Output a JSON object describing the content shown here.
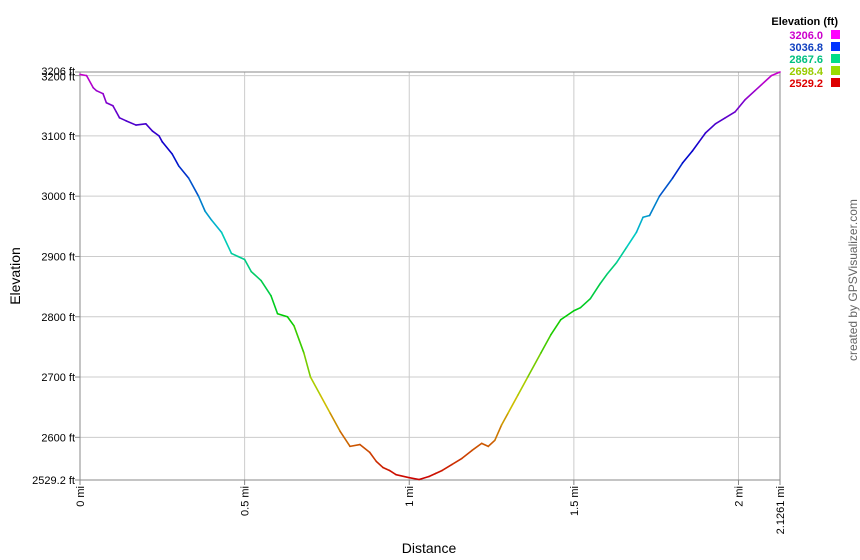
{
  "chart_data": {
    "type": "line",
    "xlabel": "Distance",
    "ylabel": "Elevation",
    "xlim": [
      0,
      2.1261
    ],
    "ylim": [
      2529.2,
      3206
    ],
    "x_ticks": [
      {
        "v": 0,
        "label": "0 mi"
      },
      {
        "v": 0.5,
        "label": "0.5 mi"
      },
      {
        "v": 1,
        "label": "1 mi"
      },
      {
        "v": 1.5,
        "label": "1.5 mi"
      },
      {
        "v": 2,
        "label": "2 mi"
      },
      {
        "v": 2.1261,
        "label": "2.1261 mi"
      }
    ],
    "y_ticks": [
      {
        "v": 2529.2,
        "label": "2529.2 ft"
      },
      {
        "v": 2600,
        "label": "2600 ft"
      },
      {
        "v": 2700,
        "label": "2700 ft"
      },
      {
        "v": 2800,
        "label": "2800 ft"
      },
      {
        "v": 2900,
        "label": "2900 ft"
      },
      {
        "v": 3000,
        "label": "3000 ft"
      },
      {
        "v": 3100,
        "label": "3100 ft"
      },
      {
        "v": 3200,
        "label": "3200 ft"
      },
      {
        "v": 3206,
        "label": "3206 ft"
      }
    ],
    "legend": {
      "title": "Elevation (ft)",
      "placement": "top-right",
      "entries": [
        {
          "label": "3206.0",
          "color": "#cc00cc",
          "swatch": "#ff00ff"
        },
        {
          "label": "3036.8",
          "color": "#1040c0",
          "swatch": "#0033ff"
        },
        {
          "label": "2867.6",
          "color": "#00c080",
          "swatch": "#00dd88"
        },
        {
          "label": "2698.4",
          "color": "#99cc00",
          "swatch": "#99dd00"
        },
        {
          "label": "2529.2",
          "color": "#dd0000",
          "swatch": "#dd0000"
        }
      ]
    },
    "grid": true,
    "series": [
      {
        "x": [
          0,
          0.02,
          0.04,
          0.05,
          0.07,
          0.08,
          0.1,
          0.11,
          0.12,
          0.14,
          0.17,
          0.2,
          0.22,
          0.24,
          0.25,
          0.28,
          0.3,
          0.33,
          0.36,
          0.38,
          0.4,
          0.43,
          0.46,
          0.48,
          0.5,
          0.52,
          0.55,
          0.58,
          0.6,
          0.63,
          0.65,
          0.68,
          0.7,
          0.73,
          0.76,
          0.79,
          0.82,
          0.85,
          0.88,
          0.9,
          0.92,
          0.94,
          0.96,
          1.0,
          1.03,
          1.06,
          1.08,
          1.1,
          1.13,
          1.16,
          1.19,
          1.22,
          1.24,
          1.26,
          1.28,
          1.3,
          1.33,
          1.36,
          1.4,
          1.43,
          1.46,
          1.5,
          1.52,
          1.55,
          1.58,
          1.6,
          1.63,
          1.66,
          1.69,
          1.71,
          1.73,
          1.76,
          1.8,
          1.83,
          1.86,
          1.88,
          1.9,
          1.93,
          1.96,
          1.99,
          2.02,
          2.05,
          2.07,
          2.1,
          2.1261
        ],
        "y": [
          3202,
          3200,
          3180,
          3175,
          3170,
          3155,
          3150,
          3140,
          3130,
          3125,
          3118,
          3120,
          3108,
          3100,
          3090,
          3070,
          3050,
          3030,
          3000,
          2975,
          2960,
          2940,
          2905,
          2900,
          2895,
          2875,
          2860,
          2835,
          2805,
          2800,
          2785,
          2740,
          2700,
          2670,
          2640,
          2610,
          2585,
          2588,
          2575,
          2560,
          2550,
          2545,
          2538,
          2533,
          2530,
          2535,
          2540,
          2545,
          2555,
          2565,
          2578,
          2590,
          2585,
          2595,
          2620,
          2640,
          2670,
          2700,
          2740,
          2770,
          2795,
          2810,
          2815,
          2830,
          2855,
          2870,
          2890,
          2915,
          2940,
          2965,
          2968,
          3000,
          3030,
          3055,
          3075,
          3090,
          3105,
          3120,
          3130,
          3140,
          3160,
          3175,
          3185,
          3200,
          3206
        ]
      }
    ]
  },
  "credit": "created by GPSVisualizer.com"
}
